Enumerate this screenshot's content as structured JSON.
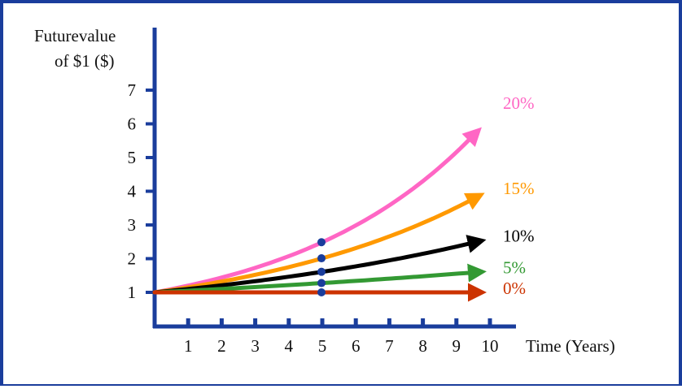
{
  "chart_data": {
    "type": "line",
    "title": "",
    "ylabel_line1": "Futurevalue",
    "ylabel_line2": "of $1 ($)",
    "xlabel": "Time (Years)",
    "x_ticks": [
      "1",
      "2",
      "3",
      "4",
      "5",
      "6",
      "7",
      "8",
      "9",
      "10"
    ],
    "y_ticks": [
      "1",
      "2",
      "3",
      "4",
      "5",
      "6",
      "7"
    ],
    "xlim": [
      0,
      10
    ],
    "ylim": [
      0,
      7
    ],
    "grid": false,
    "legend": "inline-right",
    "series": [
      {
        "name": "20%",
        "rate": 0.2,
        "color": "#ff66c4"
      },
      {
        "name": "15%",
        "rate": 0.15,
        "color": "#ff9900"
      },
      {
        "name": "10%",
        "rate": 0.1,
        "color": "#000000"
      },
      {
        "name": "5%",
        "rate": 0.05,
        "color": "#339933"
      },
      {
        "name": "0%",
        "rate": 0.0,
        "color": "#cc3300"
      }
    ],
    "markers_at_x": 5,
    "marker_color": "#1a3d9c",
    "axis_color": "#1a3d9c"
  }
}
